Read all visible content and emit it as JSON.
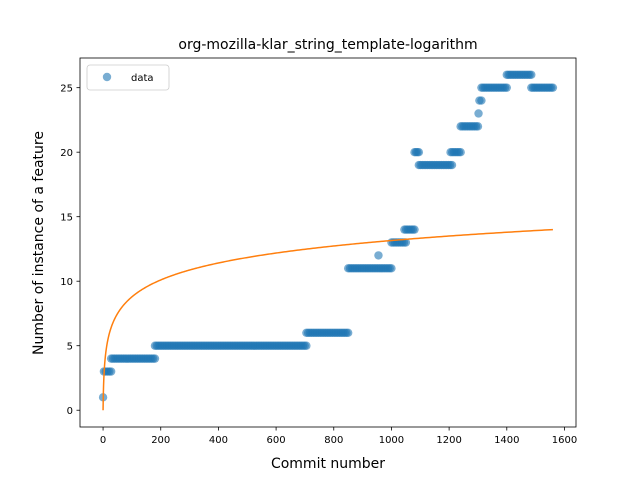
{
  "chart_data": {
    "type": "scatter",
    "title": "org-mozilla-klar_string_template-logarithm",
    "xlabel": "Commit number",
    "ylabel": "Number of instance of a feature",
    "xlim": [
      -80,
      1640
    ],
    "ylim": [
      -1.3,
      27.3
    ],
    "xticks": [
      0,
      200,
      400,
      600,
      800,
      1000,
      1200,
      1400,
      1600
    ],
    "yticks": [
      0,
      5,
      10,
      15,
      20,
      25
    ],
    "grid": false,
    "legend": {
      "placement": "top-left",
      "entries": [
        "data"
      ]
    },
    "colors": {
      "data": "#1f77b4",
      "fit": "#ff7f0e"
    },
    "series": [
      {
        "name": "data",
        "kind": "scatter-segments",
        "segments": [
          {
            "x_start": 0,
            "x_end": 2,
            "y": 1
          },
          {
            "x_start": 3,
            "x_end": 28,
            "y": 3
          },
          {
            "x_start": 28,
            "x_end": 180,
            "y": 4
          },
          {
            "x_start": 180,
            "x_end": 705,
            "y": 5
          },
          {
            "x_start": 705,
            "x_end": 850,
            "y": 6
          },
          {
            "x_start": 850,
            "x_end": 1000,
            "y": 11
          },
          {
            "x_start": 955,
            "x_end": 955,
            "y": 12
          },
          {
            "x_start": 1000,
            "x_end": 1050,
            "y": 13
          },
          {
            "x_start": 1045,
            "x_end": 1080,
            "y": 14
          },
          {
            "x_start": 1080,
            "x_end": 1095,
            "y": 20
          },
          {
            "x_start": 1095,
            "x_end": 1210,
            "y": 19
          },
          {
            "x_start": 1205,
            "x_end": 1240,
            "y": 20
          },
          {
            "x_start": 1240,
            "x_end": 1300,
            "y": 22
          },
          {
            "x_start": 1302,
            "x_end": 1302,
            "y": 23
          },
          {
            "x_start": 1305,
            "x_end": 1312,
            "y": 24
          },
          {
            "x_start": 1312,
            "x_end": 1400,
            "y": 25
          },
          {
            "x_start": 1400,
            "x_end": 1485,
            "y": 26
          },
          {
            "x_start": 1485,
            "x_end": 1560,
            "y": 25
          }
        ]
      },
      {
        "name": "",
        "kind": "line",
        "function": "logarithmic",
        "x_range": [
          0,
          1560
        ],
        "y_start": 0,
        "y_end": 14
      }
    ]
  }
}
